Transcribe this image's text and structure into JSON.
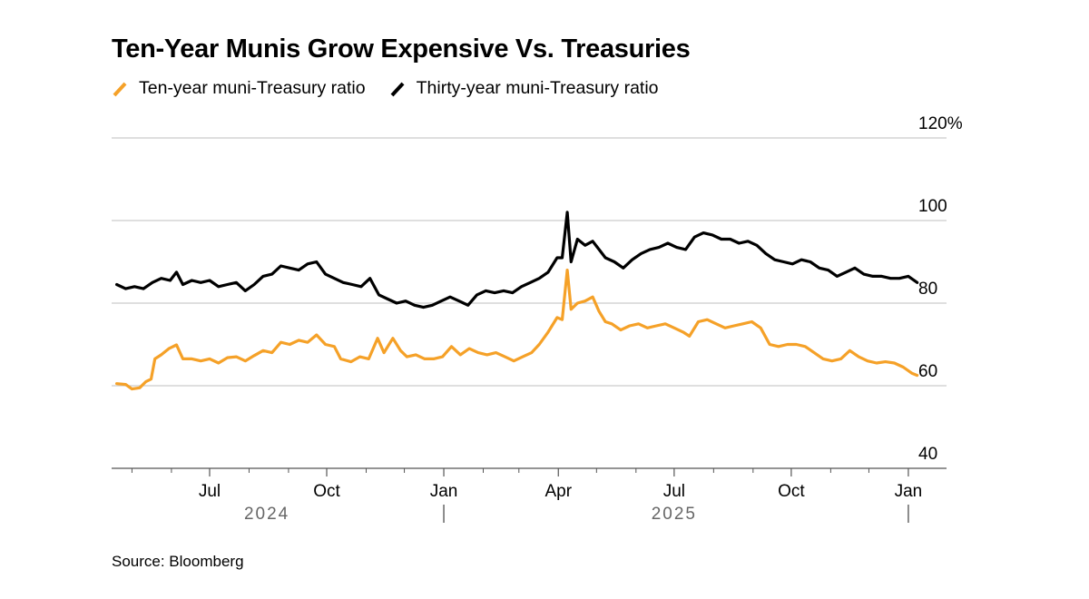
{
  "chart_data": {
    "type": "line",
    "title": "Ten-Year Munis Grow Expensive Vs. Treasuries",
    "source": "Source: Bloomberg",
    "xlabel": "",
    "ylabel": "",
    "ylim": [
      40,
      120
    ],
    "yticks": [
      {
        "value": 40,
        "label": "40"
      },
      {
        "value": 60,
        "label": "60"
      },
      {
        "value": 80,
        "label": "80"
      },
      {
        "value": 100,
        "label": "100"
      },
      {
        "value": 120,
        "label": "120%"
      }
    ],
    "xlim": [
      "2024-04-15",
      "2026-01-31"
    ],
    "xticks": [
      {
        "date": "2024-07-01",
        "label": "Jul"
      },
      {
        "date": "2024-10-01",
        "label": "Oct"
      },
      {
        "date": "2025-01-01",
        "label": "Jan"
      },
      {
        "date": "2025-04-01",
        "label": "Apr"
      },
      {
        "date": "2025-07-01",
        "label": "Jul"
      },
      {
        "date": "2025-10-01",
        "label": "Oct"
      },
      {
        "date": "2026-01-01",
        "label": "Jan"
      }
    ],
    "minor_ticks": [
      "2024-05-01",
      "2024-06-01",
      "2024-08-01",
      "2024-09-01",
      "2024-11-01",
      "2024-12-01",
      "2025-02-01",
      "2025-03-01",
      "2025-05-01",
      "2025-06-01",
      "2025-08-01",
      "2025-09-01",
      "2025-11-01",
      "2025-12-01"
    ],
    "years": [
      {
        "label": "2024",
        "date": "2024-08-15"
      },
      {
        "label": "2025",
        "date": "2025-07-01"
      }
    ],
    "year_dividers": [
      "2025-01-01",
      "2026-01-01"
    ],
    "grid": true,
    "legend_position": "top-left",
    "series": [
      {
        "name": "Ten-year muni-Treasury ratio",
        "color": "#f5a128",
        "points": [
          [
            "2024-04-19",
            60.5
          ],
          [
            "2024-04-26",
            60.3
          ],
          [
            "2024-05-01",
            59.2
          ],
          [
            "2024-05-07",
            59.5
          ],
          [
            "2024-05-12",
            61.0
          ],
          [
            "2024-05-16",
            61.6
          ],
          [
            "2024-05-19",
            66.5
          ],
          [
            "2024-05-24",
            67.5
          ],
          [
            "2024-05-30",
            69.0
          ],
          [
            "2024-06-05",
            69.9
          ],
          [
            "2024-06-10",
            66.5
          ],
          [
            "2024-06-17",
            66.5
          ],
          [
            "2024-06-24",
            66.0
          ],
          [
            "2024-07-01",
            66.5
          ],
          [
            "2024-07-08",
            65.5
          ],
          [
            "2024-07-15",
            66.8
          ],
          [
            "2024-07-22",
            67.0
          ],
          [
            "2024-07-29",
            66.0
          ],
          [
            "2024-08-05",
            67.3
          ],
          [
            "2024-08-12",
            68.5
          ],
          [
            "2024-08-19",
            68.0
          ],
          [
            "2024-08-26",
            70.5
          ],
          [
            "2024-09-02",
            70.0
          ],
          [
            "2024-09-09",
            71.0
          ],
          [
            "2024-09-16",
            70.5
          ],
          [
            "2024-09-23",
            72.3
          ],
          [
            "2024-09-30",
            70.0
          ],
          [
            "2024-10-07",
            69.5
          ],
          [
            "2024-10-12",
            66.5
          ],
          [
            "2024-10-20",
            65.8
          ],
          [
            "2024-10-27",
            67.0
          ],
          [
            "2024-11-03",
            66.5
          ],
          [
            "2024-11-10",
            71.5
          ],
          [
            "2024-11-15",
            68.0
          ],
          [
            "2024-11-22",
            71.5
          ],
          [
            "2024-11-28",
            68.5
          ],
          [
            "2024-12-03",
            67.0
          ],
          [
            "2024-12-10",
            67.5
          ],
          [
            "2024-12-17",
            66.5
          ],
          [
            "2024-12-24",
            66.5
          ],
          [
            "2024-12-31",
            67.0
          ],
          [
            "2025-01-07",
            69.5
          ],
          [
            "2025-01-14",
            67.5
          ],
          [
            "2025-01-21",
            69.0
          ],
          [
            "2025-01-28",
            68.0
          ],
          [
            "2025-02-04",
            67.5
          ],
          [
            "2025-02-11",
            68.0
          ],
          [
            "2025-02-18",
            67.0
          ],
          [
            "2025-02-25",
            66.0
          ],
          [
            "2025-03-04",
            67.0
          ],
          [
            "2025-03-11",
            68.0
          ],
          [
            "2025-03-17",
            70.0
          ],
          [
            "2025-03-24",
            73.0
          ],
          [
            "2025-03-31",
            76.5
          ],
          [
            "2025-04-04",
            76.0
          ],
          [
            "2025-04-08",
            88.0
          ],
          [
            "2025-04-11",
            78.5
          ],
          [
            "2025-04-16",
            80.0
          ],
          [
            "2025-04-22",
            80.5
          ],
          [
            "2025-04-28",
            81.5
          ],
          [
            "2025-05-03",
            78.0
          ],
          [
            "2025-05-08",
            75.5
          ],
          [
            "2025-05-13",
            75.0
          ],
          [
            "2025-05-20",
            73.5
          ],
          [
            "2025-05-27",
            74.5
          ],
          [
            "2025-06-03",
            75.0
          ],
          [
            "2025-06-10",
            74.0
          ],
          [
            "2025-06-17",
            74.5
          ],
          [
            "2025-06-24",
            75.0
          ],
          [
            "2025-07-01",
            74.0
          ],
          [
            "2025-07-08",
            73.0
          ],
          [
            "2025-07-13",
            72.0
          ],
          [
            "2025-07-20",
            75.5
          ],
          [
            "2025-07-27",
            76.0
          ],
          [
            "2025-08-03",
            75.0
          ],
          [
            "2025-08-10",
            74.0
          ],
          [
            "2025-08-17",
            74.5
          ],
          [
            "2025-08-24",
            75.0
          ],
          [
            "2025-08-31",
            75.5
          ],
          [
            "2025-09-07",
            74.0
          ],
          [
            "2025-09-14",
            70.0
          ],
          [
            "2025-09-21",
            69.5
          ],
          [
            "2025-09-28",
            70.0
          ],
          [
            "2025-10-05",
            70.0
          ],
          [
            "2025-10-12",
            69.5
          ],
          [
            "2025-10-19",
            68.0
          ],
          [
            "2025-10-26",
            66.5
          ],
          [
            "2025-11-02",
            66.0
          ],
          [
            "2025-11-09",
            66.5
          ],
          [
            "2025-11-16",
            68.5
          ],
          [
            "2025-11-23",
            67.0
          ],
          [
            "2025-11-30",
            66.0
          ],
          [
            "2025-12-07",
            65.5
          ],
          [
            "2025-12-14",
            65.8
          ],
          [
            "2025-12-21",
            65.5
          ],
          [
            "2025-12-28",
            64.5
          ],
          [
            "2026-01-04",
            63.0
          ],
          [
            "2026-01-08",
            62.5
          ]
        ]
      },
      {
        "name": "Thirty-year muni-Treasury ratio",
        "color": "#000000",
        "points": [
          [
            "2024-04-19",
            84.5
          ],
          [
            "2024-04-26",
            83.5
          ],
          [
            "2024-05-03",
            84.0
          ],
          [
            "2024-05-10",
            83.5
          ],
          [
            "2024-05-17",
            85.0
          ],
          [
            "2024-05-24",
            86.0
          ],
          [
            "2024-05-31",
            85.5
          ],
          [
            "2024-06-05",
            87.5
          ],
          [
            "2024-06-10",
            84.5
          ],
          [
            "2024-06-17",
            85.5
          ],
          [
            "2024-06-24",
            85.0
          ],
          [
            "2024-07-01",
            85.5
          ],
          [
            "2024-07-08",
            84.0
          ],
          [
            "2024-07-15",
            84.5
          ],
          [
            "2024-07-22",
            85.0
          ],
          [
            "2024-07-29",
            83.0
          ],
          [
            "2024-08-05",
            84.5
          ],
          [
            "2024-08-12",
            86.5
          ],
          [
            "2024-08-19",
            87.0
          ],
          [
            "2024-08-26",
            89.0
          ],
          [
            "2024-09-02",
            88.5
          ],
          [
            "2024-09-09",
            88.0
          ],
          [
            "2024-09-16",
            89.5
          ],
          [
            "2024-09-23",
            90.0
          ],
          [
            "2024-09-30",
            87.0
          ],
          [
            "2024-10-07",
            86.0
          ],
          [
            "2024-10-14",
            85.0
          ],
          [
            "2024-10-21",
            84.5
          ],
          [
            "2024-10-28",
            84.0
          ],
          [
            "2024-11-04",
            86.0
          ],
          [
            "2024-11-11",
            82.0
          ],
          [
            "2024-11-18",
            81.0
          ],
          [
            "2024-11-25",
            80.0
          ],
          [
            "2024-12-02",
            80.5
          ],
          [
            "2024-12-09",
            79.5
          ],
          [
            "2024-12-16",
            79.0
          ],
          [
            "2024-12-23",
            79.5
          ],
          [
            "2024-12-30",
            80.5
          ],
          [
            "2025-01-06",
            81.5
          ],
          [
            "2025-01-13",
            80.5
          ],
          [
            "2025-01-20",
            79.5
          ],
          [
            "2025-01-27",
            82.0
          ],
          [
            "2025-02-03",
            83.0
          ],
          [
            "2025-02-10",
            82.5
          ],
          [
            "2025-02-17",
            83.0
          ],
          [
            "2025-02-24",
            82.5
          ],
          [
            "2025-03-03",
            84.0
          ],
          [
            "2025-03-10",
            85.0
          ],
          [
            "2025-03-17",
            86.0
          ],
          [
            "2025-03-24",
            87.5
          ],
          [
            "2025-03-31",
            91.0
          ],
          [
            "2025-04-04",
            91.0
          ],
          [
            "2025-04-08",
            102.0
          ],
          [
            "2025-04-11",
            90.0
          ],
          [
            "2025-04-16",
            95.5
          ],
          [
            "2025-04-22",
            94.0
          ],
          [
            "2025-04-28",
            95.0
          ],
          [
            "2025-05-03",
            93.0
          ],
          [
            "2025-05-08",
            91.0
          ],
          [
            "2025-05-15",
            90.0
          ],
          [
            "2025-05-22",
            88.5
          ],
          [
            "2025-05-29",
            90.5
          ],
          [
            "2025-06-05",
            92.0
          ],
          [
            "2025-06-12",
            93.0
          ],
          [
            "2025-06-19",
            93.5
          ],
          [
            "2025-06-26",
            94.5
          ],
          [
            "2025-07-03",
            93.5
          ],
          [
            "2025-07-10",
            93.0
          ],
          [
            "2025-07-17",
            96.0
          ],
          [
            "2025-07-24",
            97.0
          ],
          [
            "2025-07-31",
            96.5
          ],
          [
            "2025-08-07",
            95.5
          ],
          [
            "2025-08-14",
            95.5
          ],
          [
            "2025-08-21",
            94.5
          ],
          [
            "2025-08-28",
            95.0
          ],
          [
            "2025-09-04",
            94.0
          ],
          [
            "2025-09-11",
            92.0
          ],
          [
            "2025-09-18",
            90.5
          ],
          [
            "2025-09-25",
            90.0
          ],
          [
            "2025-10-02",
            89.5
          ],
          [
            "2025-10-09",
            90.5
          ],
          [
            "2025-10-16",
            90.0
          ],
          [
            "2025-10-23",
            88.5
          ],
          [
            "2025-10-30",
            88.0
          ],
          [
            "2025-11-06",
            86.5
          ],
          [
            "2025-11-13",
            87.5
          ],
          [
            "2025-11-20",
            88.5
          ],
          [
            "2025-11-27",
            87.0
          ],
          [
            "2025-12-04",
            86.5
          ],
          [
            "2025-12-11",
            86.5
          ],
          [
            "2025-12-18",
            86.0
          ],
          [
            "2025-12-25",
            86.0
          ],
          [
            "2026-01-01",
            86.5
          ],
          [
            "2026-01-08",
            85.0
          ]
        ]
      }
    ]
  }
}
